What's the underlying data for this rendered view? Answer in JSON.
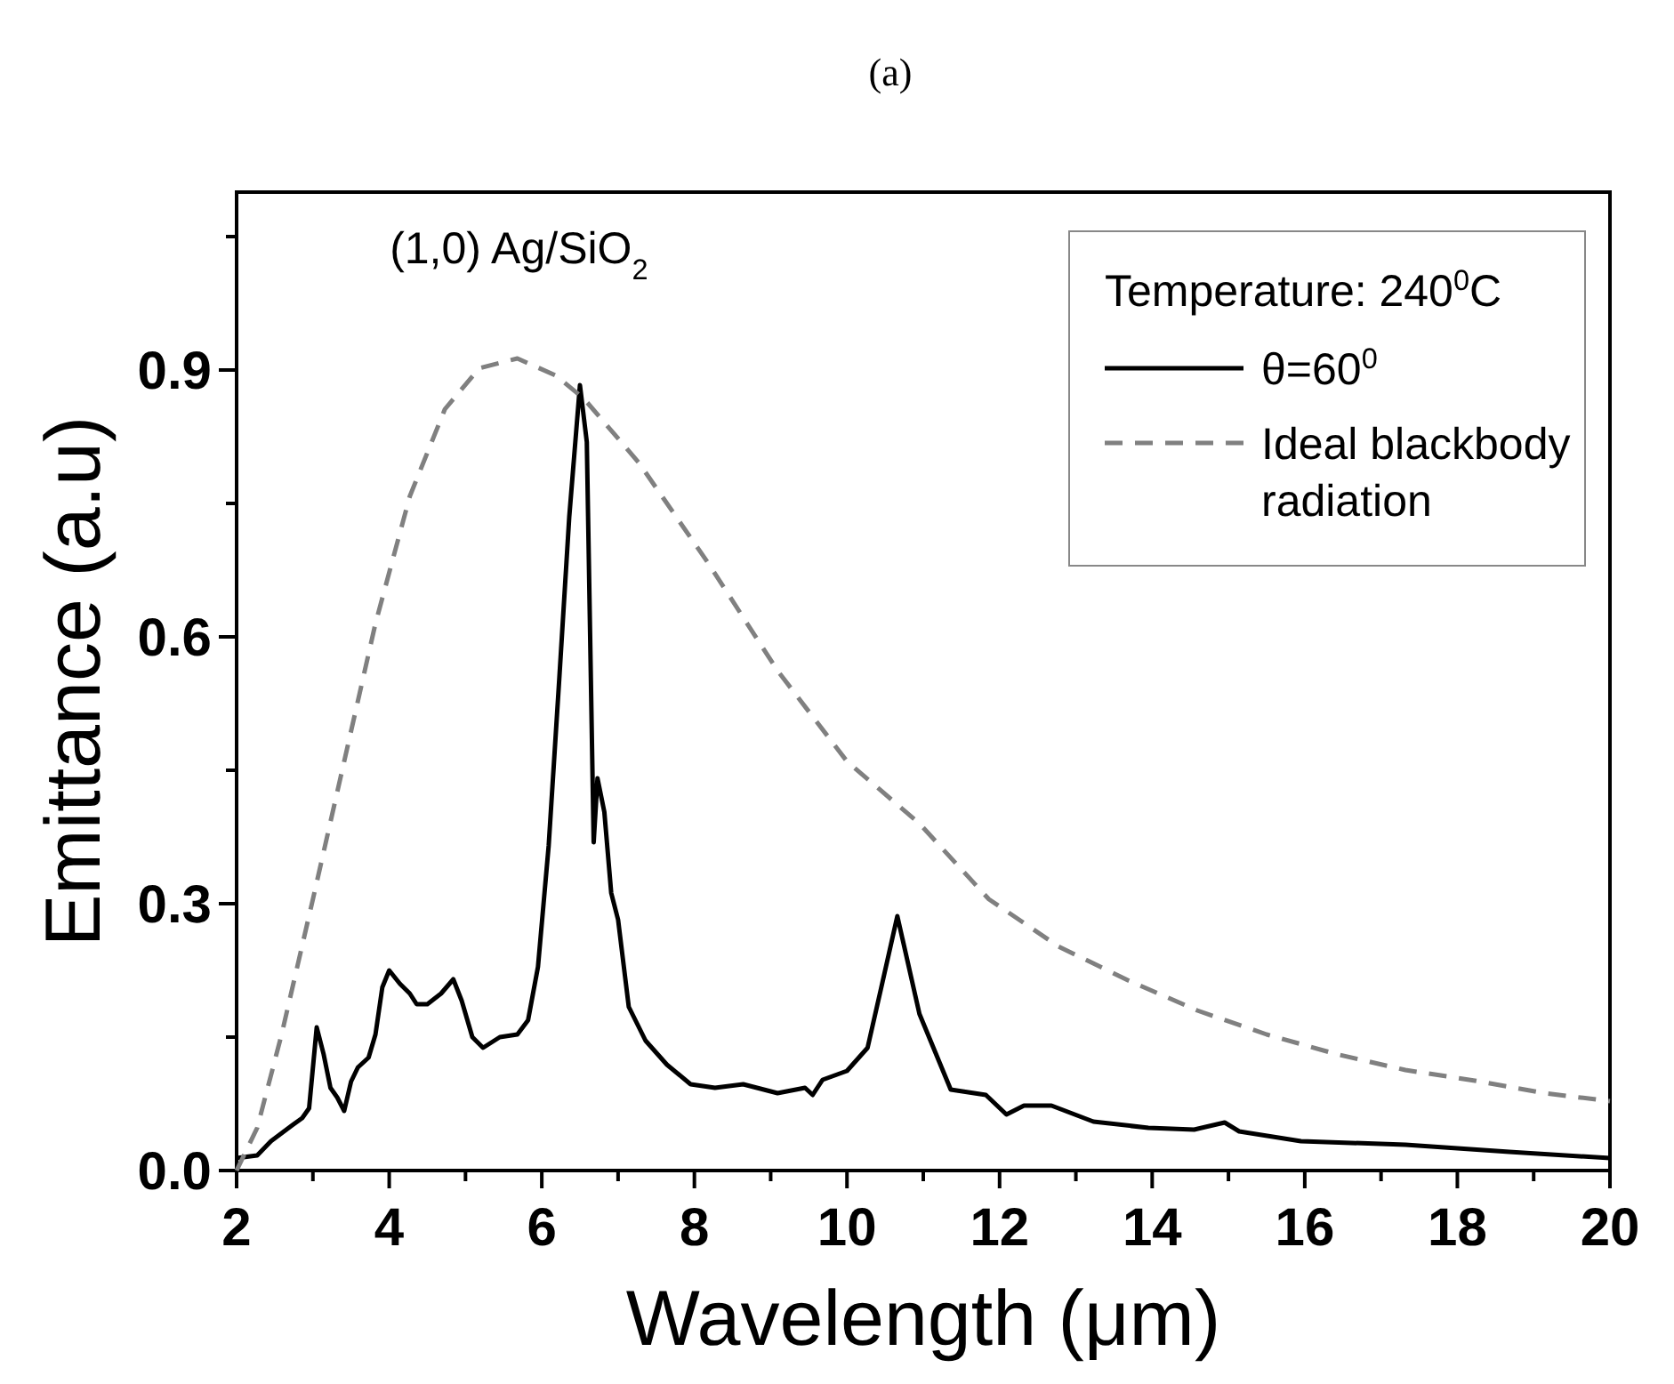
{
  "chart_data": {
    "type": "line",
    "title": "(a)",
    "xlabel": "Wavelength (μm)",
    "ylabel": "Emittance (a.u)",
    "legend_title": "Temperature: 240$^{0}$C",
    "annotations": [
      "(1,0) Ag/SiO$_{2}$"
    ],
    "legend": "top right",
    "xlim": [
      2,
      20
    ],
    "ylim": [
      0,
      1.1
    ],
    "xticks": [
      2,
      4,
      6,
      8,
      10,
      12,
      14,
      16,
      18,
      20
    ],
    "yticks": [
      {
        "value": 0,
        "label": "0.0"
      },
      {
        "value": 0.3,
        "label": "0.3"
      },
      {
        "value": 0.6,
        "label": "0.6"
      },
      {
        "value": 0.9,
        "label": "0.9"
      }
    ],
    "series": [
      {
        "name": "θ=60$^{0}$",
        "color": "#000000",
        "line_style": "solid",
        "x": [
          2,
          2.27,
          2.45,
          2.73,
          2.86,
          2.95,
          3.05,
          3.14,
          3.23,
          3.32,
          3.41,
          3.5,
          3.59,
          3.73,
          3.82,
          3.91,
          4.0,
          4.14,
          4.27,
          4.36,
          4.5,
          4.68,
          4.84,
          4.95,
          5.09,
          5.23,
          5.45,
          5.68,
          5.82,
          5.95,
          6.09,
          6.23,
          6.36,
          6.5,
          6.59,
          6.68,
          6.73,
          6.82,
          6.91,
          7.0,
          7.14,
          7.36,
          7.64,
          7.95,
          8.27,
          8.64,
          9.09,
          9.45,
          9.55,
          9.68,
          10.0,
          10.27,
          10.45,
          10.66,
          10.95,
          11.36,
          11.82,
          12.09,
          12.32,
          12.68,
          13.23,
          13.95,
          14.55,
          14.95,
          15.14,
          15.95,
          17.32,
          18.68,
          20
        ],
        "values": [
          0.014,
          0.017,
          0.033,
          0.051,
          0.059,
          0.07,
          0.161,
          0.131,
          0.093,
          0.082,
          0.067,
          0.1,
          0.116,
          0.127,
          0.153,
          0.206,
          0.225,
          0.21,
          0.199,
          0.187,
          0.187,
          0.199,
          0.215,
          0.191,
          0.15,
          0.138,
          0.15,
          0.153,
          0.169,
          0.229,
          0.365,
          0.554,
          0.735,
          0.883,
          0.819,
          0.369,
          0.441,
          0.403,
          0.312,
          0.282,
          0.184,
          0.146,
          0.119,
          0.097,
          0.093,
          0.097,
          0.087,
          0.093,
          0.085,
          0.102,
          0.112,
          0.138,
          0.206,
          0.286,
          0.176,
          0.091,
          0.085,
          0.063,
          0.073,
          0.073,
          0.055,
          0.048,
          0.046,
          0.054,
          0.044,
          0.033,
          0.029,
          0.021,
          0.014
        ]
      },
      {
        "name": "Ideal blackbody radiation",
        "color": "#808080",
        "line_style": "dashed",
        "x": [
          2,
          2.27,
          2.59,
          3.0,
          3.36,
          3.82,
          4.27,
          4.73,
          5.18,
          5.68,
          6.18,
          6.55,
          7.27,
          8.18,
          9.09,
          10.0,
          10.95,
          11.86,
          12.77,
          13.68,
          14.59,
          15.5,
          16.41,
          17.32,
          18.23,
          19.14,
          20
        ],
        "values": [
          0,
          0.048,
          0.153,
          0.305,
          0.441,
          0.615,
          0.758,
          0.856,
          0.902,
          0.913,
          0.894,
          0.868,
          0.796,
          0.683,
          0.562,
          0.46,
          0.39,
          0.305,
          0.252,
          0.214,
          0.18,
          0.153,
          0.131,
          0.113,
          0.101,
          0.087,
          0.078
        ]
      }
    ]
  }
}
